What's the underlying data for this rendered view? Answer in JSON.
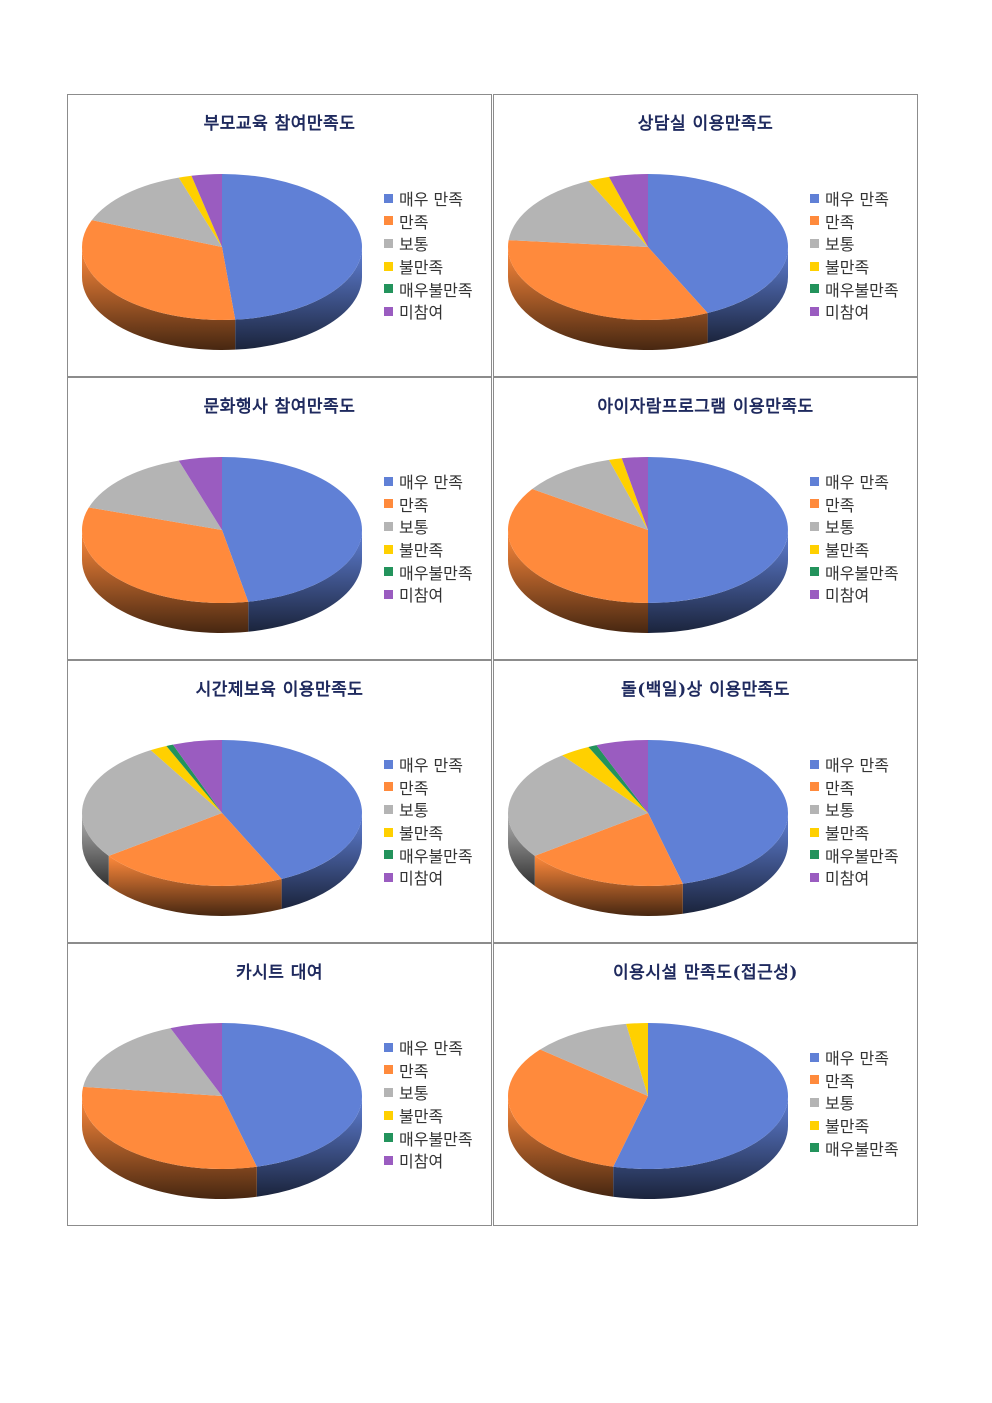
{
  "colors": {
    "매우 만족": "#6080d6",
    "만족": "#ff8a3c",
    "보통": "#b4b4b4",
    "불만족": "#ffd000",
    "매우불만족": "#23935c",
    "미참여": "#9a5cc0"
  },
  "chart_data": [
    {
      "type": "pie",
      "title": "부모교육 참여만족도",
      "categories": [
        "매우 만족",
        "만족",
        "보통",
        "불만족",
        "매우불만족",
        "미참여"
      ],
      "values": [
        48.5,
        32.5,
        14,
        1.5,
        0,
        3.5
      ]
    },
    {
      "type": "pie",
      "title": "상담실 이용만족도",
      "categories": [
        "매우 만족",
        "만족",
        "보통",
        "불만족",
        "매우불만족",
        "미참여"
      ],
      "values": [
        43,
        33.5,
        16.5,
        2.5,
        0,
        4.5
      ]
    },
    {
      "type": "pie",
      "title": "문화행사 참여만족도",
      "categories": [
        "매우 만족",
        "만족",
        "보통",
        "불만족",
        "매우불만족",
        "미참여"
      ],
      "values": [
        47,
        33,
        15,
        0,
        0,
        5
      ]
    },
    {
      "type": "pie",
      "title": "아이자람프로그램 이용만족도",
      "categories": [
        "매우 만족",
        "만족",
        "보통",
        "불만족",
        "매우불만족",
        "미참여"
      ],
      "values": [
        50,
        34.5,
        11,
        1.5,
        0,
        3
      ]
    },
    {
      "type": "pie",
      "title": "시간제보육 이용만족도",
      "categories": [
        "매우 만족",
        "만족",
        "보통",
        "불만족",
        "매우불만족",
        "미참여"
      ],
      "values": [
        43,
        22,
        26.5,
        2,
        0.8,
        5.7
      ]
    },
    {
      "type": "pie",
      "title": "돌(백일)상 이용만족도",
      "categories": [
        "매우 만족",
        "만족",
        "보통",
        "불만족",
        "매우불만족",
        "미참여"
      ],
      "values": [
        46,
        19,
        24.5,
        3.5,
        1,
        6
      ]
    },
    {
      "type": "pie",
      "title": "카시트 대여",
      "categories": [
        "매우 만족",
        "만족",
        "보통",
        "불만족",
        "매우불만족",
        "미참여"
      ],
      "values": [
        46,
        31,
        17,
        0,
        0,
        6
      ]
    },
    {
      "type": "pie",
      "title": "이용시설 만족도(접근성)",
      "categories": [
        "매우 만족",
        "만족",
        "보통",
        "불만족",
        "매우불만족"
      ],
      "values": [
        54,
        32,
        11.5,
        2.5,
        0
      ]
    }
  ]
}
